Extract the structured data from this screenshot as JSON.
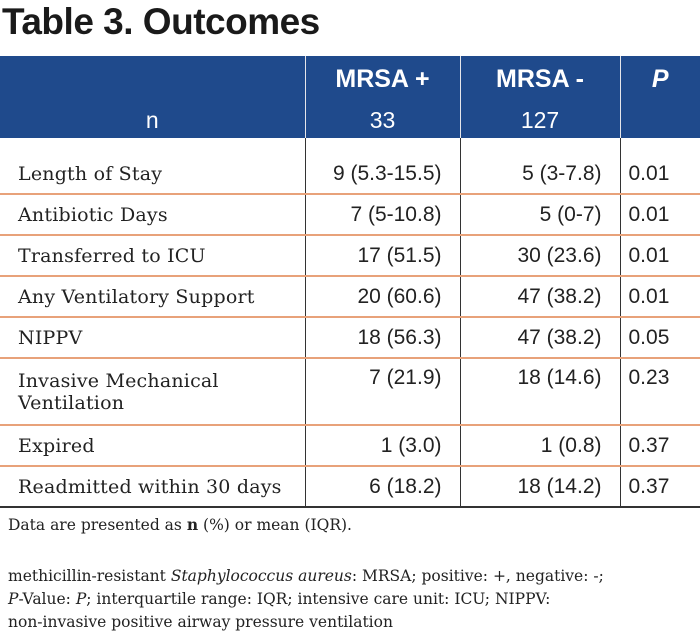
{
  "title": "Table 3. Outcomes",
  "header": {
    "col1": "MRSA +",
    "col2": "MRSA -",
    "col3": "P",
    "n_label": "n",
    "n_col1": "33",
    "n_col2": "127"
  },
  "rows": [
    {
      "label": "Length of Stay",
      "mrsa_pos": "9 (5.3-15.5)",
      "mrsa_neg": "5 (3-7.8)",
      "p": "0.01"
    },
    {
      "label": "Antibiotic Days",
      "mrsa_pos": "7 (5-10.8)",
      "mrsa_neg": "5 (0-7)",
      "p": "0.01"
    },
    {
      "label": "Transferred to ICU",
      "mrsa_pos": "17 (51.5)",
      "mrsa_neg": "30 (23.6)",
      "p": "0.01"
    },
    {
      "label": "Any Ventilatory Support",
      "mrsa_pos": "20 (60.6)",
      "mrsa_neg": "47 (38.2)",
      "p": "0.01"
    },
    {
      "label": "NIPPV",
      "mrsa_pos": "18 (56.3)",
      "mrsa_neg": "47 (38.2)",
      "p": "0.05"
    },
    {
      "label_line1": "Invasive Mechanical",
      "label_line2": "Ventilation",
      "mrsa_pos": "7 (21.9)",
      "mrsa_neg": "18 (14.6)",
      "p": "0.23"
    },
    {
      "label": "Expired",
      "mrsa_pos": "1 (3.0)",
      "mrsa_neg": "1 (0.8)",
      "p": "0.37"
    },
    {
      "label": "Readmitted within 30 days",
      "mrsa_pos": "6 (18.2)",
      "mrsa_neg": "18 (14.2)",
      "p": "0.37"
    }
  ],
  "notes": {
    "note1_prefix": "Data are presented as ",
    "note1_n": "n",
    "note1_suffix": " (%) or mean (IQR).",
    "note2_a": "methicillin-resistant ",
    "note2_species": "Staphylococcus aureus",
    "note2_b": ": MRSA; positive: +, negative: -;",
    "note2_p_italic": "P",
    "note2_c": "-Value: ",
    "note2_p_italic2": "P",
    "note2_d": "; interquartile range: IQR;  intensive care unit: ICU; NIPPV:",
    "note2_e": "non-invasive positive airway pressure ventilation"
  },
  "colors": {
    "header_bg": "#1f4a8c",
    "row_divider": "#e8a27a"
  }
}
